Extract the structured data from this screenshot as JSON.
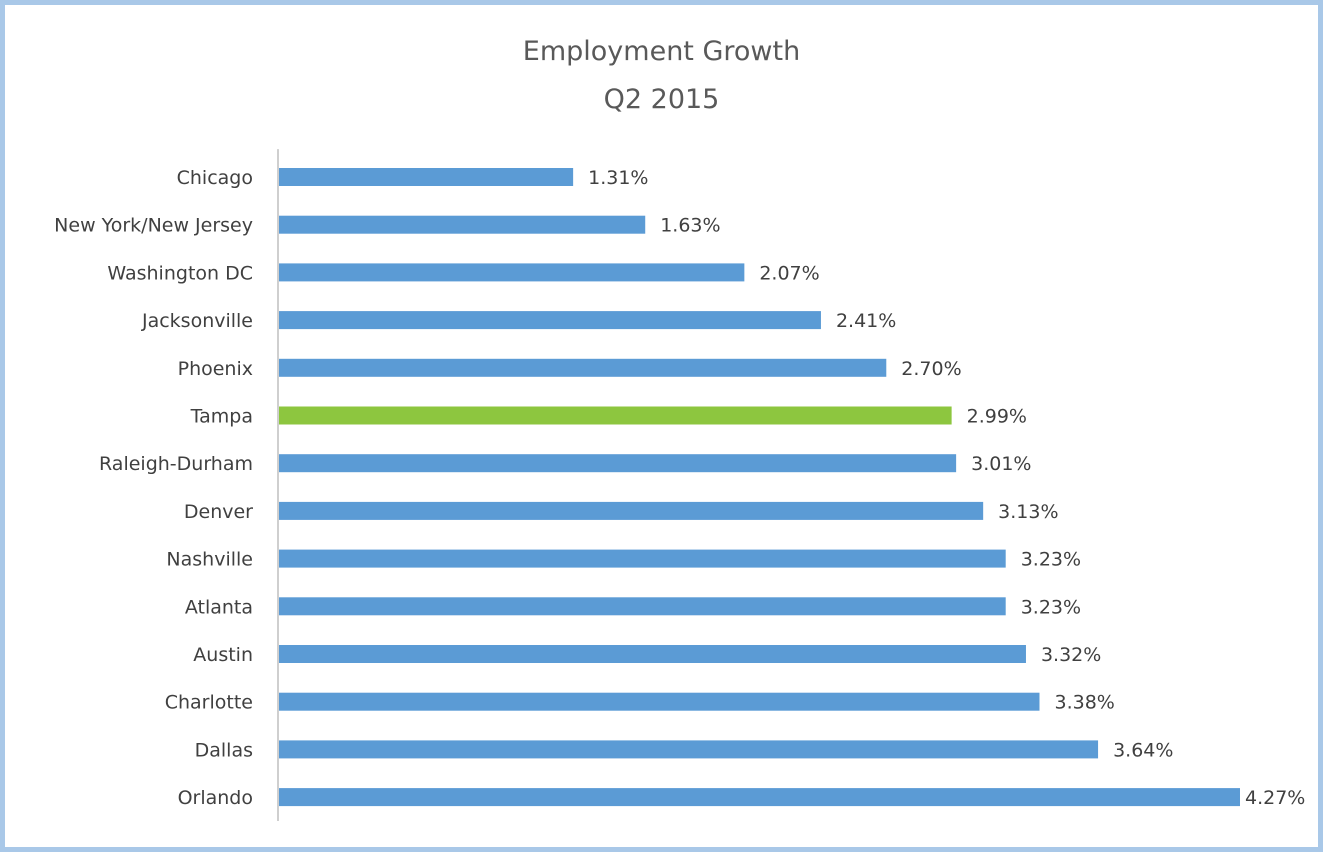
{
  "chart_data": {
    "type": "bar",
    "orientation": "horizontal",
    "title": "Employment Growth",
    "subtitle": "Q2 2015",
    "xlabel": "",
    "ylabel": "",
    "xlim": [
      0,
      4.27
    ],
    "grid": false,
    "legend": "none",
    "categories": [
      "Chicago",
      "New York/New Jersey",
      "Washington DC",
      "Jacksonville",
      "Phoenix",
      "Tampa",
      "Raleigh-Durham",
      "Denver",
      "Nashville",
      "Atlanta",
      "Austin",
      "Charlotte",
      "Dallas",
      "Orlando"
    ],
    "values": [
      1.31,
      1.63,
      2.07,
      2.41,
      2.7,
      2.99,
      3.01,
      3.13,
      3.23,
      3.23,
      3.32,
      3.38,
      3.64,
      4.27
    ],
    "value_labels": [
      "1.31%",
      "1.63%",
      "2.07%",
      "2.41%",
      "2.70%",
      "2.99%",
      "3.01%",
      "3.13%",
      "3.23%",
      "3.23%",
      "3.32%",
      "3.38%",
      "3.64%",
      "4.27%"
    ],
    "highlight_category": "Tampa",
    "colors": {
      "bar": "#5b9bd5",
      "highlight": "#8dc63f",
      "axis": "#bfbfbf",
      "border": "#a9c8e8"
    }
  }
}
